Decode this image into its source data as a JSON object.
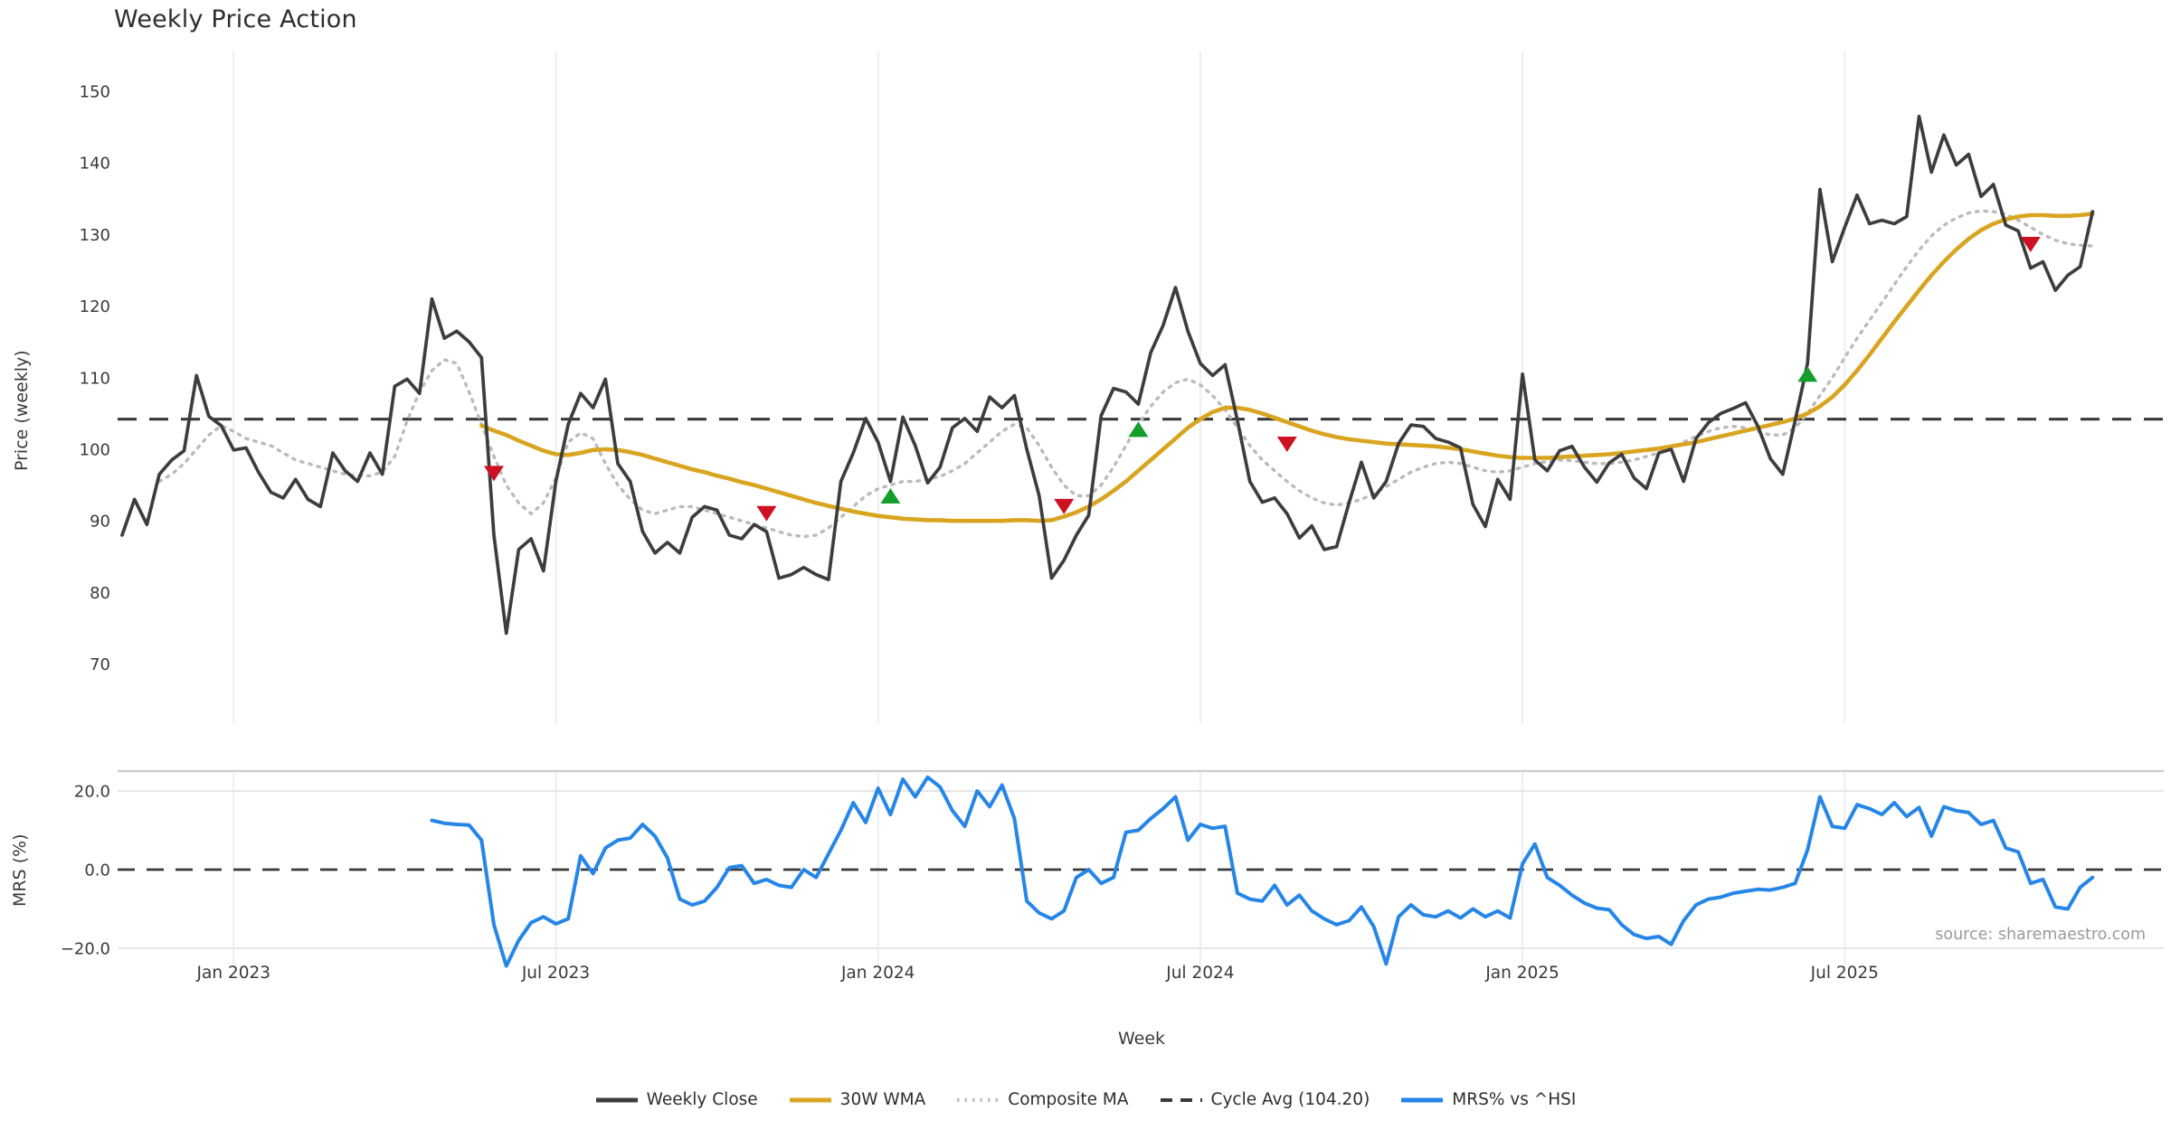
{
  "title": "Weekly Price Action",
  "source_note": "source: sharemaestro.com",
  "colors": {
    "weekly_close": "#3d3d3d",
    "wma_30w": "#d9a521",
    "composite_ma": "#bbbbbb",
    "cycle_avg": "#3a3a3a",
    "mrs": "#2586e8",
    "buy_marker": "#159e2c",
    "sell_marker": "#cc1122",
    "grid_vertical": "#ededf3",
    "grid_mrs_horizontal": "#e6e6e6",
    "mrs_top_spine": "#cccccc",
    "tick_text": "#3a3a3a"
  },
  "legend": [
    {
      "label": "Weekly Close",
      "style": "solid-dark"
    },
    {
      "label": "30W WMA",
      "style": "solid-gold"
    },
    {
      "label": "Composite MA",
      "style": "dotted-gray"
    },
    {
      "label": "Cycle Avg (104.20)",
      "style": "dashed-dark"
    },
    {
      "label": "MRS% vs ^HSI",
      "style": "solid-blue"
    }
  ],
  "x_axis": {
    "label": "Week",
    "ticks": [
      {
        "index": 9,
        "label": "Jan 2023"
      },
      {
        "index": 35,
        "label": "Jul 2023"
      },
      {
        "index": 61,
        "label": "Jan 2024"
      },
      {
        "index": 87,
        "label": "Jul 2024"
      },
      {
        "index": 113,
        "label": "Jan 2025"
      },
      {
        "index": 139,
        "label": "Jul 2025"
      }
    ]
  },
  "chart_data": [
    {
      "type": "line",
      "panel": "price",
      "title": "Weekly Price Action",
      "xlabel": "Week",
      "ylabel": "Price (weekly)",
      "x_start": "2022-11-07",
      "x_interval": "weekly",
      "ylim": [
        66,
        153
      ],
      "yticks": [
        150,
        140,
        130,
        120,
        110,
        100,
        90,
        80,
        70
      ],
      "grid": "vertical-only",
      "cycle_avg": 104.2,
      "series": [
        {
          "name": "Weekly Close",
          "values": [
            88.0,
            93.0,
            89.5,
            96.5,
            98.5,
            99.8,
            110.3,
            104.6,
            103.3,
            99.9,
            100.2,
            96.8,
            94.0,
            93.2,
            95.8,
            93.0,
            92.0,
            99.5,
            97.0,
            95.5,
            99.5,
            96.5,
            108.8,
            109.8,
            107.8,
            121.0,
            115.5,
            116.5,
            115.0,
            112.8,
            88.0,
            74.3,
            86.0,
            87.5,
            83.0,
            95.5,
            103.5,
            107.8,
            105.8,
            109.8,
            98.0,
            95.5,
            88.5,
            85.5,
            87.0,
            85.5,
            90.5,
            92.0,
            91.5,
            88.0,
            87.5,
            89.5,
            88.5,
            82.0,
            82.5,
            83.5,
            82.5,
            81.8,
            95.5,
            99.5,
            104.3,
            101.0,
            95.5,
            104.5,
            100.5,
            95.3,
            97.5,
            103.0,
            104.3,
            102.5,
            107.3,
            105.8,
            107.5,
            100.0,
            93.5,
            82.0,
            84.5,
            88.0,
            90.8,
            104.7,
            108.5,
            108.0,
            106.3,
            113.5,
            117.3,
            122.6,
            116.5,
            112.0,
            110.3,
            111.8,
            104.0,
            95.5,
            92.6,
            93.2,
            91.0,
            87.6,
            89.3,
            86.0,
            86.4,
            92.5,
            98.2,
            93.2,
            95.5,
            100.8,
            103.4,
            103.2,
            101.5,
            101.0,
            100.2,
            92.3,
            89.2,
            95.8,
            93.0,
            110.5,
            98.5,
            97.0,
            99.8,
            100.4,
            97.5,
            95.4,
            98.1,
            99.3,
            96.0,
            94.5,
            99.5,
            100.0,
            95.5,
            101.5,
            103.7,
            105.0,
            105.7,
            106.5,
            103.2,
            98.7,
            96.5,
            104.0,
            112.0,
            136.3,
            126.2,
            131.0,
            135.5,
            131.5,
            132.0,
            131.5,
            132.5,
            146.5,
            138.7,
            143.9,
            139.7,
            141.2,
            135.3,
            137.0,
            131.3,
            130.5,
            125.3,
            126.2,
            122.2,
            124.3,
            125.5,
            133.2
          ]
        },
        {
          "name": "30W WMA",
          "values": [
            null,
            null,
            null,
            null,
            null,
            null,
            null,
            null,
            null,
            null,
            null,
            null,
            null,
            null,
            null,
            null,
            null,
            null,
            null,
            null,
            null,
            null,
            null,
            null,
            null,
            null,
            null,
            null,
            null,
            103.3,
            102.6,
            102.0,
            101.2,
            100.5,
            99.8,
            99.3,
            99.2,
            99.5,
            99.9,
            100.0,
            99.9,
            99.6,
            99.2,
            98.7,
            98.2,
            97.7,
            97.2,
            96.8,
            96.3,
            95.9,
            95.4,
            95.0,
            94.5,
            94.0,
            93.5,
            93.0,
            92.5,
            92.1,
            91.7,
            91.3,
            91.0,
            90.7,
            90.5,
            90.3,
            90.2,
            90.1,
            90.1,
            90.0,
            90.0,
            90.0,
            90.0,
            90.0,
            90.1,
            90.1,
            90.0,
            90.1,
            90.6,
            91.2,
            92.0,
            93.0,
            94.2,
            95.5,
            97.0,
            98.5,
            100.0,
            101.5,
            103.0,
            104.2,
            105.2,
            105.8,
            105.8,
            105.5,
            105.0,
            104.4,
            103.8,
            103.2,
            102.6,
            102.1,
            101.7,
            101.4,
            101.2,
            101.0,
            100.8,
            100.7,
            100.6,
            100.5,
            100.4,
            100.2,
            100.0,
            99.7,
            99.4,
            99.1,
            98.9,
            98.8,
            98.8,
            98.8,
            98.9,
            99.0,
            99.1,
            99.2,
            99.3,
            99.5,
            99.7,
            99.9,
            100.1,
            100.4,
            100.7,
            101.0,
            101.4,
            101.8,
            102.2,
            102.6,
            103.0,
            103.4,
            103.8,
            104.3,
            105.0,
            106.0,
            107.3,
            109.0,
            111.0,
            113.2,
            115.5,
            117.8,
            120.0,
            122.2,
            124.3,
            126.2,
            127.9,
            129.4,
            130.6,
            131.5,
            132.1,
            132.5,
            132.7,
            132.7,
            132.6,
            132.6,
            132.7,
            132.9
          ]
        },
        {
          "name": "Composite MA",
          "values": [
            null,
            null,
            null,
            95.5,
            96.5,
            98.0,
            100.0,
            102.0,
            103.3,
            102.5,
            101.5,
            101.0,
            100.5,
            99.5,
            98.5,
            98.0,
            97.5,
            97.0,
            96.5,
            96.3,
            96.3,
            96.8,
            99.0,
            104.0,
            108.0,
            111.0,
            112.5,
            112.0,
            108.0,
            103.5,
            99.0,
            95.0,
            92.5,
            91.0,
            92.5,
            96.0,
            101.0,
            102.3,
            101.5,
            98.0,
            95.0,
            93.0,
            91.5,
            91.0,
            91.5,
            92.0,
            92.0,
            91.5,
            91.0,
            90.5,
            90.0,
            89.5,
            89.0,
            88.5,
            88.0,
            87.8,
            88.0,
            89.0,
            90.5,
            92.0,
            93.5,
            94.5,
            95.0,
            95.5,
            95.5,
            95.8,
            96.2,
            97.0,
            98.0,
            99.5,
            101.0,
            102.5,
            103.5,
            103.0,
            100.5,
            97.5,
            95.0,
            93.5,
            93.5,
            95.0,
            97.5,
            100.5,
            103.5,
            106.0,
            108.0,
            109.3,
            109.8,
            109.0,
            107.5,
            105.5,
            103.0,
            100.5,
            98.5,
            97.0,
            95.5,
            94.2,
            93.2,
            92.5,
            92.2,
            92.5,
            93.0,
            93.8,
            94.8,
            95.8,
            96.8,
            97.5,
            98.0,
            98.2,
            98.0,
            97.5,
            97.0,
            96.8,
            97.0,
            97.5,
            98.0,
            98.3,
            98.5,
            98.4,
            98.2,
            98.0,
            98.0,
            98.2,
            98.5,
            99.0,
            99.5,
            100.2,
            101.0,
            101.8,
            102.5,
            103.0,
            103.2,
            103.0,
            102.5,
            102.0,
            102.0,
            103.0,
            105.0,
            107.5,
            110.0,
            112.8,
            115.5,
            118.0,
            120.5,
            123.0,
            125.5,
            127.8,
            129.8,
            131.3,
            132.3,
            133.0,
            133.3,
            133.2,
            132.8,
            132.0,
            131.0,
            130.0,
            129.2,
            128.7,
            128.5,
            128.4
          ]
        }
      ],
      "signals": {
        "buy": [
          {
            "week_index": 62,
            "price": 93.5
          },
          {
            "week_index": 82,
            "price": 102.8
          },
          {
            "week_index": 136,
            "price": 110.5
          }
        ],
        "sell": [
          {
            "week_index": 30,
            "price": 96.6
          },
          {
            "week_index": 52,
            "price": 91.0
          },
          {
            "week_index": 76,
            "price": 92.0
          },
          {
            "week_index": 94,
            "price": 100.7
          },
          {
            "week_index": 154,
            "price": 128.6
          }
        ]
      }
    },
    {
      "type": "line",
      "panel": "mrs",
      "ylabel": "MRS (%)",
      "ylim": [
        -27,
        25.5
      ],
      "yticks": [
        20.0,
        0.0,
        -20.0
      ],
      "ytick_labels": [
        "20.0",
        "0.0",
        "−20.0"
      ],
      "zero_line": 0,
      "grid": "both-light",
      "series": [
        {
          "name": "MRS% vs ^HSI",
          "values": [
            null,
            null,
            null,
            null,
            null,
            null,
            null,
            null,
            null,
            null,
            null,
            null,
            null,
            null,
            null,
            null,
            null,
            null,
            null,
            null,
            null,
            null,
            null,
            null,
            null,
            12.5,
            11.8,
            11.5,
            11.3,
            7.5,
            -14.0,
            -24.5,
            -18.0,
            -13.5,
            -12.0,
            -13.8,
            -12.5,
            3.5,
            -1.0,
            5.5,
            7.5,
            8.0,
            11.5,
            8.5,
            3.0,
            -7.5,
            -9.0,
            -8.0,
            -4.5,
            0.5,
            1.0,
            -3.5,
            -2.5,
            -4.0,
            -4.5,
            0.0,
            -2.0,
            4.0,
            10.0,
            17.0,
            12.0,
            20.7,
            14.0,
            23.0,
            18.5,
            23.5,
            21.0,
            15.0,
            11.0,
            20.0,
            16.0,
            21.5,
            13.0,
            -8.0,
            -11.0,
            -12.5,
            -10.5,
            -2.0,
            0.0,
            -3.5,
            -2.0,
            9.5,
            10.0,
            13.0,
            15.5,
            18.5,
            7.5,
            11.5,
            10.5,
            11.0,
            -6.0,
            -7.5,
            -8.0,
            -4.0,
            -9.0,
            -6.5,
            -10.5,
            -12.5,
            -14.0,
            -13.0,
            -9.5,
            -14.5,
            -24.0,
            -12.0,
            -9.0,
            -11.5,
            -12.0,
            -10.5,
            -12.3,
            -10.0,
            -12.0,
            -10.5,
            -12.3,
            1.5,
            6.5,
            -2.0,
            -4.0,
            -6.5,
            -8.5,
            -9.8,
            -10.2,
            -14.0,
            -16.5,
            -17.5,
            -17.0,
            -19.0,
            -13.0,
            -9.0,
            -7.5,
            -7.0,
            -6.0,
            -5.5,
            -5.0,
            -5.2,
            -4.5,
            -3.5,
            5.0,
            18.5,
            11.0,
            10.5,
            16.5,
            15.5,
            14.0,
            17.0,
            13.5,
            15.8,
            8.5,
            16.0,
            15.0,
            14.5,
            11.5,
            12.5,
            5.5,
            4.5,
            -3.5,
            -2.5,
            -9.5,
            -10.0,
            -4.5,
            -2.0
          ]
        }
      ]
    }
  ]
}
